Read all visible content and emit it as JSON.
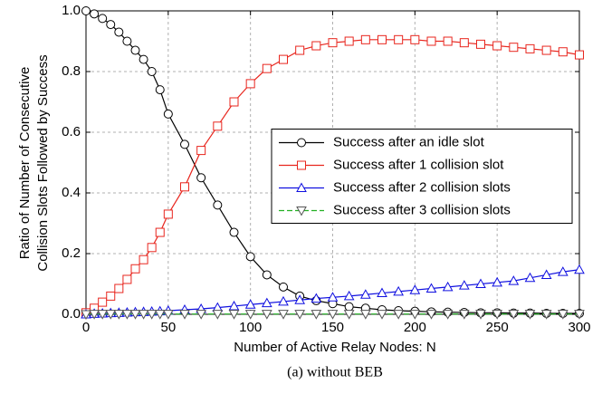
{
  "chart_data": {
    "type": "line",
    "x": [
      0,
      5,
      10,
      15,
      20,
      25,
      30,
      35,
      40,
      45,
      50,
      60,
      70,
      80,
      90,
      100,
      110,
      120,
      130,
      140,
      150,
      160,
      170,
      180,
      190,
      200,
      210,
      220,
      230,
      240,
      250,
      260,
      270,
      280,
      290,
      300
    ],
    "series": [
      {
        "name": "Success after an idle slot",
        "color": "#000000",
        "marker": "circle",
        "dash": "solid",
        "values": [
          1.0,
          0.99,
          0.975,
          0.955,
          0.93,
          0.9,
          0.87,
          0.84,
          0.8,
          0.74,
          0.66,
          0.56,
          0.45,
          0.36,
          0.27,
          0.19,
          0.13,
          0.09,
          0.06,
          0.045,
          0.035,
          0.025,
          0.02,
          0.015,
          0.012,
          0.01,
          0.008,
          0.007,
          0.006,
          0.005,
          0.005,
          0.004,
          0.004,
          0.003,
          0.003,
          0.003
        ]
      },
      {
        "name": "Success after 1 collision slot",
        "color": "#e8261e",
        "marker": "square",
        "dash": "solid",
        "values": [
          0.005,
          0.02,
          0.04,
          0.06,
          0.085,
          0.115,
          0.15,
          0.18,
          0.22,
          0.27,
          0.33,
          0.42,
          0.54,
          0.62,
          0.7,
          0.76,
          0.81,
          0.84,
          0.87,
          0.885,
          0.895,
          0.9,
          0.905,
          0.905,
          0.905,
          0.905,
          0.9,
          0.9,
          0.895,
          0.89,
          0.885,
          0.88,
          0.875,
          0.87,
          0.865,
          0.855
        ]
      },
      {
        "name": "Success after 2 collision slots",
        "color": "#1010e0",
        "marker": "triangle-up",
        "dash": "solid",
        "values": [
          0.0,
          0.002,
          0.003,
          0.004,
          0.005,
          0.006,
          0.007,
          0.008,
          0.009,
          0.01,
          0.012,
          0.015,
          0.018,
          0.022,
          0.027,
          0.032,
          0.037,
          0.042,
          0.047,
          0.052,
          0.056,
          0.06,
          0.065,
          0.07,
          0.075,
          0.08,
          0.085,
          0.09,
          0.095,
          0.1,
          0.105,
          0.11,
          0.12,
          0.13,
          0.14,
          0.147
        ]
      },
      {
        "name": "Success after 3 collision slots",
        "color": "#22b022",
        "marker": "triangle-down",
        "dash": "dashed",
        "values": [
          0.0,
          0.001,
          0.001,
          0.001,
          0.001,
          0.001,
          0.001,
          0.001,
          0.001,
          0.001,
          0.001,
          0.001,
          0.001,
          0.001,
          0.001,
          0.001,
          0.001,
          0.001,
          0.001,
          0.001,
          0.001,
          0.001,
          0.001,
          0.001,
          0.001,
          0.001,
          0.001,
          0.001,
          0.001,
          0.001,
          0.001,
          0.001,
          0.001,
          0.001,
          0.001,
          0.001
        ]
      }
    ],
    "xlabel": "Number of Active Relay Nodes: N",
    "ylabel": [
      "Ratio of Number of Consecutive",
      "Collision Slots Followed by Success"
    ],
    "caption": "(a) without BEB",
    "xlim": [
      0,
      300
    ],
    "xticks": [
      0,
      50,
      100,
      150,
      200,
      250,
      300
    ],
    "ylim": [
      0,
      1
    ],
    "yticks": [
      {
        "value": 0,
        "label": "0.0"
      },
      {
        "value": 0.2,
        "label": "0.2"
      },
      {
        "value": 0.4,
        "label": "0.4"
      },
      {
        "value": 0.6,
        "label": "0.6"
      },
      {
        "value": 0.8,
        "label": "0.8"
      },
      {
        "value": 1,
        "label": "1.0"
      }
    ],
    "grid": true,
    "legend": "center right"
  }
}
